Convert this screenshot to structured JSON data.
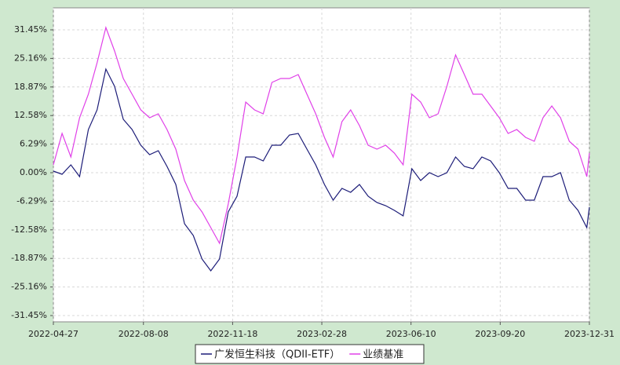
{
  "chart_data": {
    "type": "line",
    "x": [
      "2022-04-27",
      "2022-05-07",
      "2022-05-17",
      "2022-05-27",
      "2022-06-06",
      "2022-06-16",
      "2022-06-26",
      "2022-07-06",
      "2022-07-16",
      "2022-07-26",
      "2022-08-05",
      "2022-08-15",
      "2022-08-25",
      "2022-09-04",
      "2022-09-14",
      "2022-09-24",
      "2022-10-04",
      "2022-10-14",
      "2022-10-24",
      "2022-11-03",
      "2022-11-13",
      "2022-11-23",
      "2022-12-03",
      "2022-12-13",
      "2022-12-23",
      "2023-01-02",
      "2023-01-12",
      "2023-01-22",
      "2023-02-01",
      "2023-02-11",
      "2023-02-21",
      "2023-03-03",
      "2023-03-13",
      "2023-03-23",
      "2023-04-02",
      "2023-04-12",
      "2023-04-22",
      "2023-05-02",
      "2023-05-12",
      "2023-05-22",
      "2023-06-01",
      "2023-06-11",
      "2023-06-21",
      "2023-07-01",
      "2023-07-11",
      "2023-07-21",
      "2023-07-31",
      "2023-08-10",
      "2023-08-20",
      "2023-08-30",
      "2023-09-09",
      "2023-09-19",
      "2023-09-29",
      "2023-10-09",
      "2023-10-19",
      "2023-10-29",
      "2023-11-08",
      "2023-11-18",
      "2023-11-28",
      "2023-12-08",
      "2023-12-18",
      "2023-12-28",
      "2023-12-31"
    ],
    "series": [
      {
        "name": "广发恒生科技（QDII-ETF）",
        "color": "#1c1c78",
        "values": [
          0.35,
          -0.35,
          1.73,
          -0.86,
          9.5,
          13.82,
          22.81,
          19.01,
          11.75,
          9.5,
          6.05,
          3.97,
          4.84,
          1.38,
          -2.59,
          -11.23,
          -13.82,
          -19.01,
          -21.6,
          -19.01,
          -8.64,
          -5.18,
          3.46,
          3.46,
          2.59,
          6.05,
          6.05,
          8.29,
          8.64,
          5.18,
          1.73,
          -2.59,
          -6.05,
          -3.46,
          -4.32,
          -2.59,
          -5.18,
          -6.57,
          -7.26,
          -8.29,
          -9.5,
          0.86,
          -1.73,
          0,
          -0.86,
          0,
          3.46,
          1.38,
          0.86,
          3.46,
          2.59,
          0,
          -3.46,
          -3.46,
          -6.05,
          -6.05,
          -0.86,
          -0.86,
          0,
          -6.05,
          -8.29,
          -12.1,
          -7.6
        ]
      },
      {
        "name": "业绩基准",
        "color": "#e040e8",
        "values": [
          1.73,
          8.64,
          3.46,
          12.1,
          17.28,
          24.19,
          31.97,
          26.78,
          20.74,
          17.28,
          13.82,
          12.1,
          12.96,
          9.5,
          5.18,
          -1.73,
          -6.05,
          -8.64,
          -12.1,
          -15.55,
          -6.91,
          3.46,
          15.55,
          13.82,
          12.96,
          19.87,
          20.74,
          20.74,
          21.6,
          17.28,
          12.96,
          7.78,
          3.46,
          11.23,
          13.82,
          10.37,
          6.05,
          5.18,
          6.05,
          4.32,
          1.73,
          17.28,
          15.55,
          12.1,
          12.96,
          19.01,
          25.92,
          21.6,
          17.28,
          17.28,
          14.69,
          12.1,
          8.64,
          9.5,
          7.78,
          6.91,
          12.1,
          14.69,
          12.1,
          6.91,
          5.18,
          -0.86,
          4.32
        ]
      }
    ],
    "xlim": [
      "2022-04-27",
      "2023-12-31"
    ],
    "xticks": [
      "2022-04-27",
      "2022-08-08",
      "2022-11-18",
      "2023-02-28",
      "2023-06-10",
      "2023-09-20",
      "2023-12-31"
    ],
    "ylim": [
      -32.83,
      36.29
    ],
    "yticks": [
      {
        "value": 31.45,
        "label": "31.45%"
      },
      {
        "value": 25.16,
        "label": "25.16%"
      },
      {
        "value": 18.87,
        "label": "18.87%"
      },
      {
        "value": 12.58,
        "label": "12.58%"
      },
      {
        "value": 6.29,
        "label": "6.29%"
      },
      {
        "value": 0,
        "label": "0.00%"
      },
      {
        "value": -6.29,
        "label": "-6.29%"
      },
      {
        "value": -12.58,
        "label": "-12.58%"
      },
      {
        "value": -18.87,
        "label": "-18.87%"
      },
      {
        "value": -25.16,
        "label": "-25.16%"
      },
      {
        "value": -31.45,
        "label": "-31.45%"
      }
    ],
    "grid": true
  }
}
